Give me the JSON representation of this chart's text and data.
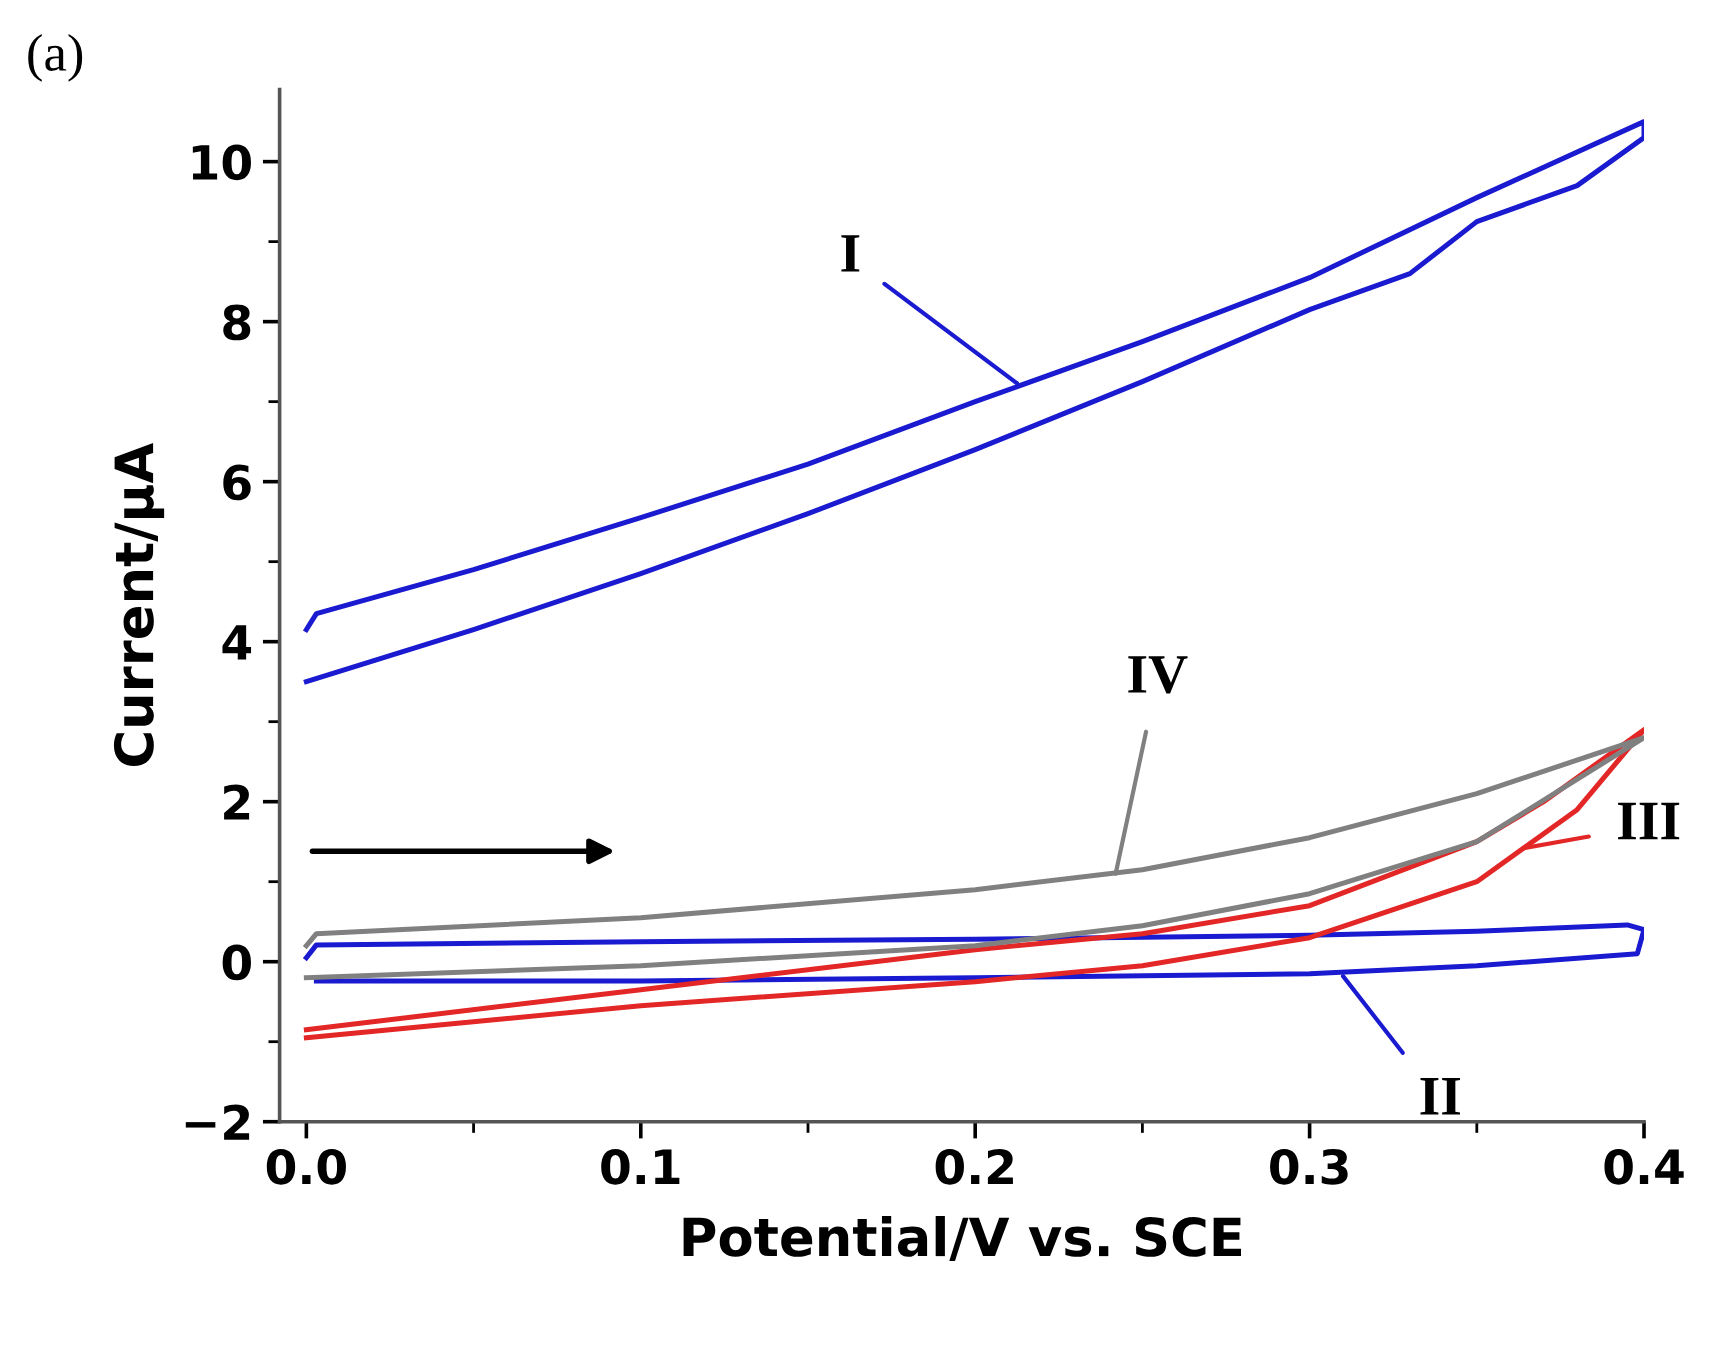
{
  "chart_data": {
    "type": "line",
    "xlabel": "Potential/V vs. SCE",
    "ylabel": "Current/μA",
    "xlim": [
      -0.008,
      0.4
    ],
    "ylim": [
      -2,
      10.9
    ],
    "xticks": [
      {
        "value": 0,
        "label": "0.0"
      },
      0.1,
      0.2,
      0.3,
      0.4
    ],
    "yticks": [
      {
        "value": -2,
        "label": "−2"
      },
      0,
      2,
      4,
      6,
      8,
      10
    ],
    "grid": false,
    "legend": false,
    "marker": "none",
    "line_style": "solid",
    "series": [
      {
        "color": "#1a1ad0",
        "x": [
          0.0,
          0.05,
          0.1,
          0.15,
          0.2,
          0.25,
          0.3,
          0.33,
          0.35,
          0.38,
          0.4,
          0.4,
          0.35,
          0.3,
          0.25,
          0.2,
          0.15,
          0.1,
          0.05,
          0.003,
          0.0
        ],
        "values": [
          3.5,
          4.15,
          4.85,
          5.6,
          6.4,
          7.25,
          8.15,
          8.6,
          9.25,
          9.7,
          10.3,
          10.5,
          9.55,
          8.55,
          7.75,
          7.0,
          6.22,
          5.55,
          4.9,
          4.35,
          4.15
        ]
      },
      {
        "color": "#1a1ad0",
        "x": [
          0.0,
          0.003,
          0.1,
          0.2,
          0.3,
          0.35,
          0.395,
          0.4,
          0.398,
          0.35,
          0.3,
          0.2,
          0.1,
          0.003
        ],
        "values": [
          0.05,
          0.21,
          0.25,
          0.28,
          0.33,
          0.38,
          0.46,
          0.4,
          0.1,
          -0.05,
          -0.15,
          -0.2,
          -0.24,
          -0.24
        ]
      },
      {
        "color": "#e32626",
        "x": [
          0.0,
          0.1,
          0.2,
          0.25,
          0.3,
          0.35,
          0.38,
          0.4,
          0.37,
          0.35,
          0.3,
          0.25,
          0.2,
          0.1,
          0.0
        ],
        "values": [
          -0.95,
          -0.55,
          -0.25,
          -0.05,
          0.3,
          1.0,
          1.9,
          2.9,
          2.0,
          1.5,
          0.7,
          0.35,
          0.15,
          -0.35,
          -0.85
        ]
      },
      {
        "color": "#808080",
        "x": [
          0.0,
          0.1,
          0.2,
          0.25,
          0.3,
          0.35,
          0.4,
          0.35,
          0.3,
          0.25,
          0.2,
          0.1,
          0.003,
          0.0
        ],
        "values": [
          -0.2,
          -0.05,
          0.2,
          0.45,
          0.85,
          1.5,
          2.8,
          2.1,
          1.55,
          1.15,
          0.9,
          0.55,
          0.35,
          0.2
        ]
      }
    ],
    "annotations": [
      "(a)",
      {
        "text": "I",
        "x": 0.2125,
        "y": 7.23
      },
      {
        "text": "II",
        "x": 0.31,
        "y": -0.18
      },
      {
        "text": "III",
        "x": 0.364,
        "y": 1.42
      },
      {
        "text": "IV",
        "x": 0.242,
        "y": 1.1
      }
    ]
  }
}
